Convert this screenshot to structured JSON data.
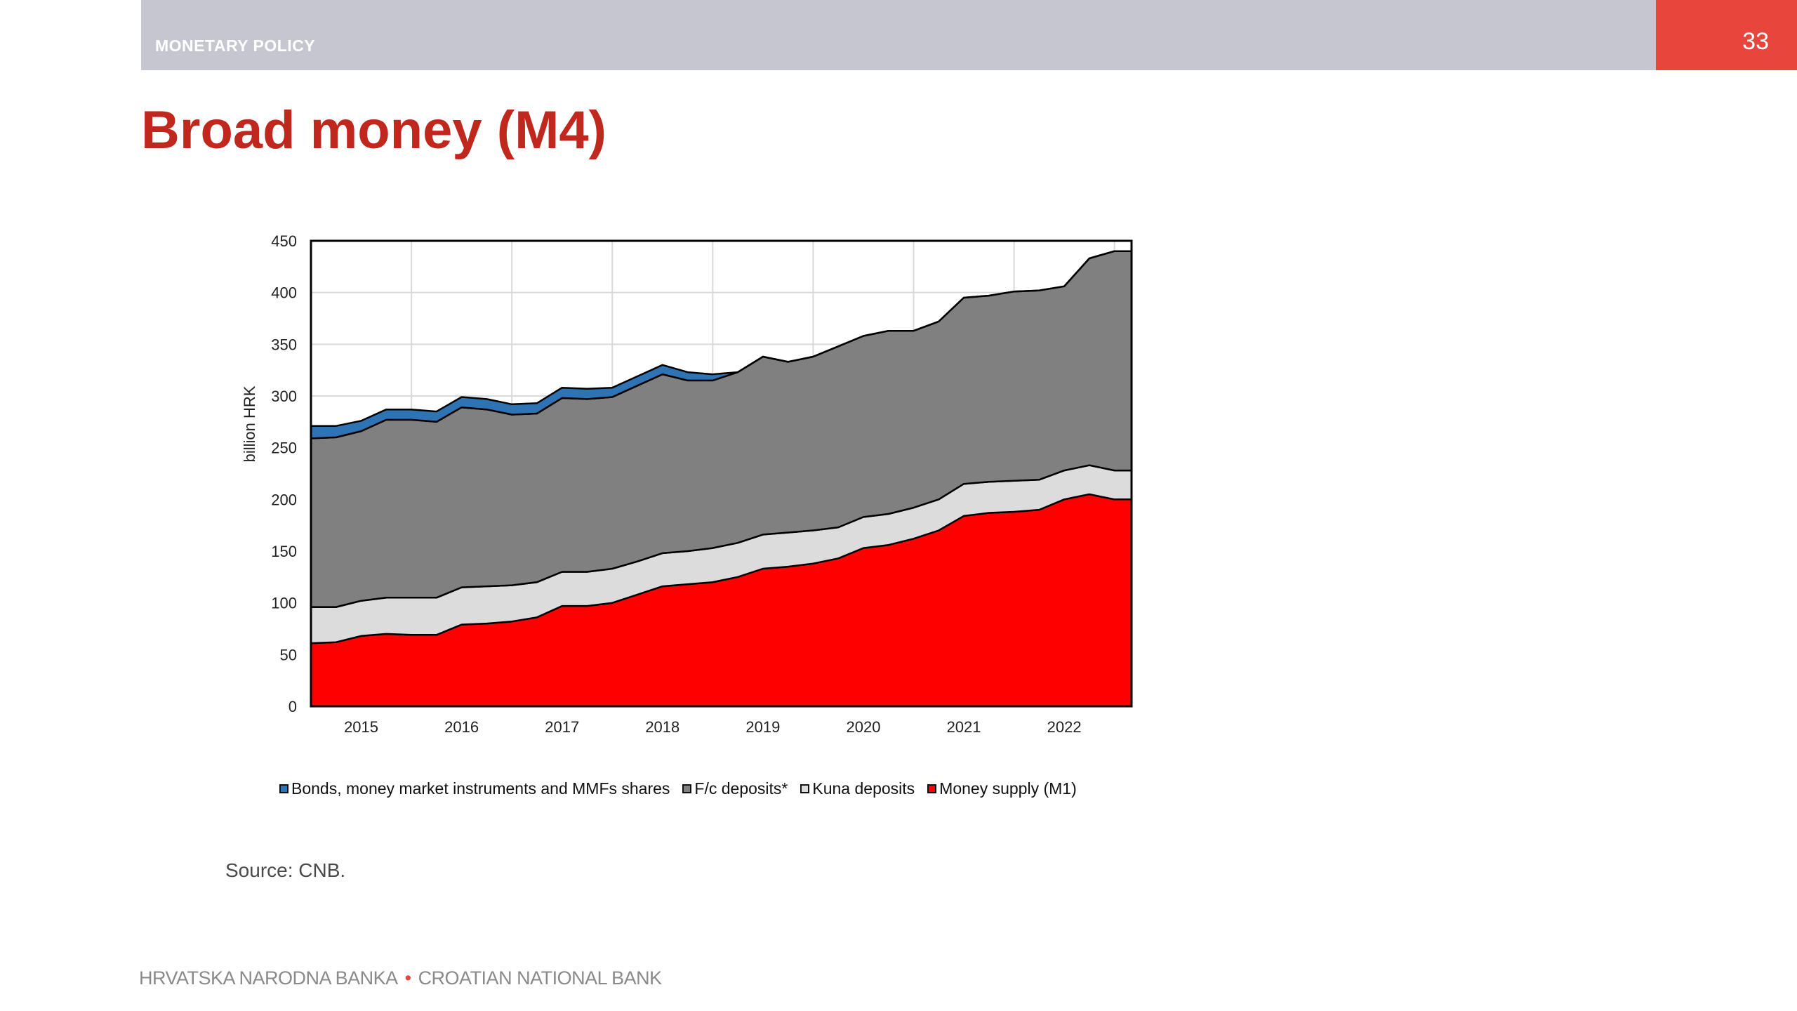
{
  "header": {
    "section": "MONETARY POLICY",
    "page_number": "33"
  },
  "title": "Broad money (M4)",
  "source": "Source: CNB.",
  "footer": {
    "left": "HRVATSKA NARODNA BANKA",
    "separator": "•",
    "right": "CROATIAN NATIONAL BANK"
  },
  "colors": {
    "header_band": "#c6c6d0",
    "page_box": "#e8453c",
    "title": "#c0281e",
    "m1": "#ff0000",
    "kuna": "#dcdcdc",
    "fc": "#808080",
    "bonds": "#2e74b5"
  },
  "chart_data": {
    "type": "area",
    "stacked": true,
    "ylabel": "billion HRK",
    "ylim": [
      0,
      450
    ],
    "yticks": [
      0,
      50,
      100,
      150,
      200,
      250,
      300,
      350,
      400,
      450
    ],
    "xlim": [
      2014.5,
      2022.67
    ],
    "xtick_labels": [
      "2015",
      "2016",
      "2017",
      "2018",
      "2019",
      "2020",
      "2021",
      "2022"
    ],
    "xtick_positions": [
      2015,
      2016,
      2017,
      2018,
      2019,
      2020,
      2021,
      2022
    ],
    "grid": true,
    "legend_position": "bottom",
    "legend": [
      {
        "name": "Bonds, money market instruments and MMFs shares",
        "color": "#2e74b5"
      },
      {
        "name": "F/c deposits*",
        "color": "#808080"
      },
      {
        "name": "Kuna deposits",
        "color": "#dcdcdc"
      },
      {
        "name": "Money supply (M1)",
        "color": "#ff0000"
      }
    ],
    "x": [
      2014.5,
      2014.75,
      2015.0,
      2015.25,
      2015.5,
      2015.75,
      2016.0,
      2016.25,
      2016.5,
      2016.75,
      2017.0,
      2017.25,
      2017.5,
      2017.75,
      2018.0,
      2018.25,
      2018.5,
      2018.75,
      2019.0,
      2019.25,
      2019.5,
      2019.75,
      2020.0,
      2020.25,
      2020.5,
      2020.75,
      2021.0,
      2021.25,
      2021.5,
      2021.75,
      2022.0,
      2022.25,
      2022.5,
      2022.67
    ],
    "series": [
      {
        "name": "Money supply (M1)",
        "color": "#ff0000",
        "values": [
          61,
          62,
          68,
          70,
          69,
          69,
          79,
          80,
          82,
          86,
          97,
          97,
          100,
          108,
          116,
          118,
          120,
          125,
          133,
          135,
          138,
          143,
          153,
          156,
          162,
          170,
          184,
          187,
          188,
          190,
          200,
          205,
          200,
          200
        ]
      },
      {
        "name": "Kuna deposits",
        "color": "#dcdcdc",
        "values": [
          35,
          34,
          34,
          35,
          36,
          36,
          36,
          36,
          35,
          34,
          33,
          33,
          33,
          32,
          32,
          32,
          33,
          33,
          33,
          33,
          32,
          30,
          30,
          30,
          30,
          30,
          31,
          30,
          30,
          29,
          28,
          28,
          28,
          28
        ]
      },
      {
        "name": "F/c deposits*",
        "color": "#808080",
        "values": [
          163,
          164,
          164,
          172,
          172,
          170,
          174,
          171,
          165,
          163,
          168,
          167,
          166,
          170,
          173,
          165,
          162,
          165,
          172,
          165,
          168,
          175,
          175,
          177,
          171,
          172,
          180,
          180,
          183,
          183,
          178,
          200,
          212,
          212
        ]
      },
      {
        "name": "Bonds, money market instruments and MMFs shares",
        "color": "#2e74b5",
        "values": [
          12,
          11,
          10,
          10,
          10,
          10,
          10,
          10,
          10,
          10,
          10,
          10,
          9,
          9,
          9,
          8,
          6,
          0,
          0,
          0,
          0,
          0,
          0,
          0,
          0,
          0,
          0,
          0,
          0,
          0,
          0,
          0,
          0,
          0
        ]
      }
    ]
  }
}
